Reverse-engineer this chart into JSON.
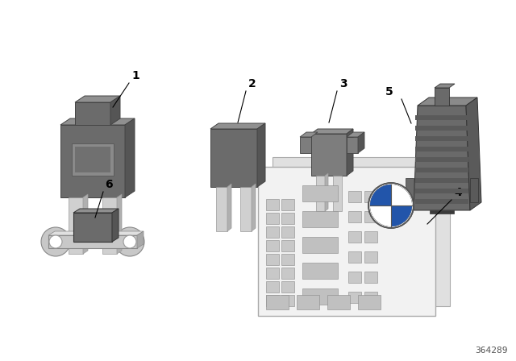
{
  "background_color": "#ffffff",
  "part_number": "364289",
  "body_dark": "#6b6b6b",
  "body_mid": "#7d7d7d",
  "body_light": "#909090",
  "body_shadow": "#555555",
  "blade_light": "#d0d0d0",
  "blade_dark": "#b0b0b0",
  "blade_shadow": "#a0a0a0",
  "item5_dark": "#5a5a5a",
  "item5_mid": "#6a6a6a",
  "item5_light": "#8a8a8a",
  "item6_metal": "#c8c8c8",
  "item6_metal_dark": "#a8a8a8",
  "label_fontsize": 10,
  "partnumber_fontsize": 8
}
